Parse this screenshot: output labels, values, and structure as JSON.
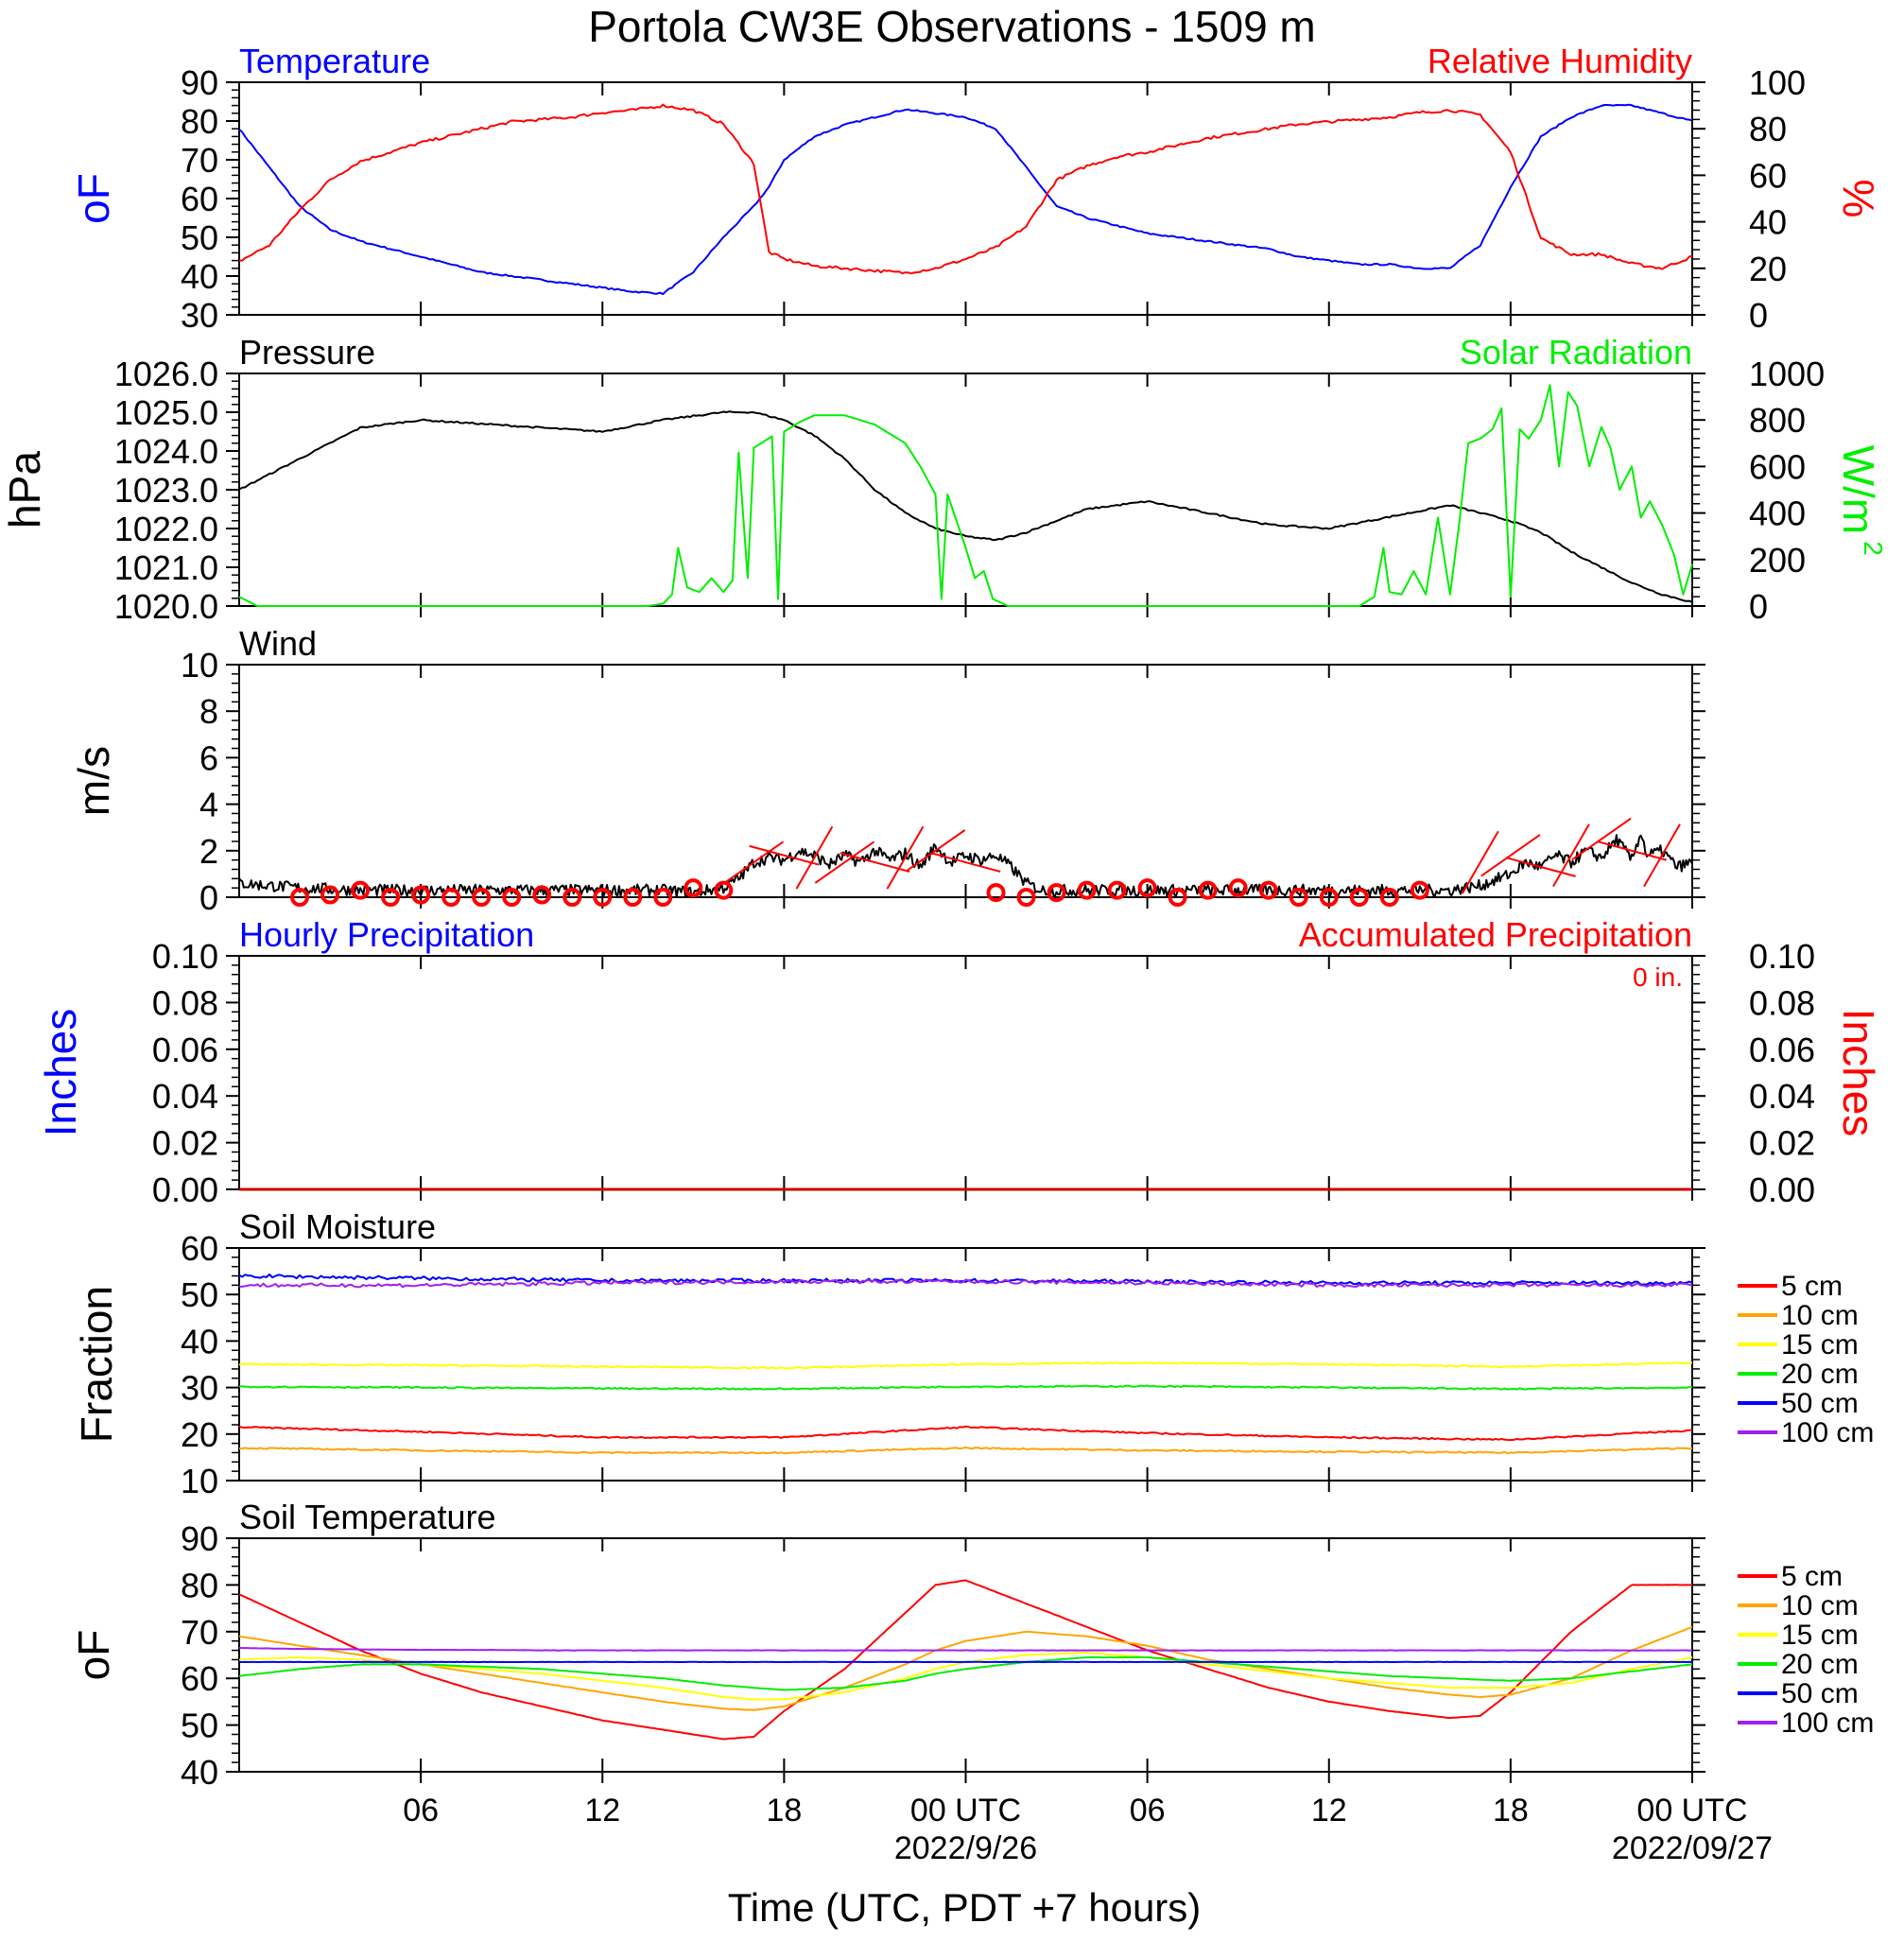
{
  "title": "Portola CW3E Observations - 1509 m",
  "x_axis": {
    "label": "Time (UTC, PDT +7 hours)",
    "tick_labels": [
      "06",
      "12",
      "18",
      "00 UTC",
      "06",
      "12",
      "18",
      "00 UTC"
    ],
    "date_labels": [
      "2022/9/26",
      "2022/09/27"
    ]
  },
  "chart_data": [
    {
      "id": "temp_rh",
      "type": "line",
      "title_left": "Temperature",
      "title_right": "Relative Humidity",
      "ylabel_left": "oF",
      "ylabel_right": "%",
      "ylim_left": [
        30,
        90
      ],
      "ylim_right": [
        0,
        100
      ],
      "left_ticks": [
        "30",
        "40",
        "50",
        "60",
        "70",
        "80",
        "90"
      ],
      "right_ticks": [
        "0",
        "20",
        "40",
        "60",
        "80",
        "100"
      ],
      "x_hours": [
        0,
        1,
        2,
        3,
        4,
        5,
        6,
        7,
        8,
        9,
        10,
        11,
        12,
        13,
        14,
        15,
        16,
        17,
        17.5,
        18,
        19,
        20,
        21,
        22,
        23,
        24,
        25,
        26,
        27,
        28,
        29,
        30,
        31,
        32,
        33,
        34,
        35,
        36,
        37,
        38,
        39,
        40,
        41,
        42,
        43,
        44,
        45,
        46,
        47,
        48
      ],
      "series": [
        {
          "name": "Temperature",
          "color": "#0000ff",
          "axis": "left",
          "values": [
            78,
            68,
            58,
            52,
            49,
            47,
            45,
            43,
            41,
            40,
            39,
            38,
            37,
            36,
            35.5,
            41,
            50,
            58,
            63,
            70,
            76,
            79,
            81,
            83,
            82,
            81,
            78,
            68,
            58,
            55,
            53,
            51,
            50,
            49,
            48,
            47,
            45,
            44,
            43,
            43,
            42,
            42,
            48,
            63,
            76,
            81,
            84,
            84,
            82,
            80
          ]
        },
        {
          "name": "Relative Humidity",
          "color": "#ff0000",
          "axis": "right",
          "values": [
            23,
            30,
            45,
            58,
            66,
            70,
            74,
            77,
            80,
            83,
            84,
            85,
            87,
            88,
            90,
            88,
            82,
            65,
            27,
            24,
            21,
            20,
            19,
            18,
            20,
            24,
            29,
            38,
            58,
            64,
            68,
            70,
            73,
            76,
            78,
            80,
            82,
            83,
            84,
            85,
            87,
            88,
            86,
            70,
            33,
            26,
            26,
            22,
            20,
            25
          ]
        }
      ]
    },
    {
      "id": "pressure_solar",
      "type": "line",
      "title_left": "Pressure",
      "title_right": "Solar Radiation",
      "ylabel_left": "hPa",
      "ylabel_right": "W/m",
      "ylabel_right_sup": "2",
      "ylim_left": [
        1020,
        1026
      ],
      "ylim_right": [
        0,
        1000
      ],
      "left_ticks": [
        "1020.0",
        "1021.0",
        "1022.0",
        "1023.0",
        "1024.0",
        "1025.0",
        "1026.0"
      ],
      "right_ticks": [
        "0",
        "200",
        "400",
        "600",
        "800",
        "1000"
      ],
      "series": [
        {
          "name": "Pressure",
          "color": "#000000",
          "axis": "left",
          "x_hours": [
            0,
            2,
            4,
            6,
            8,
            10,
            12,
            14,
            16,
            17,
            18,
            19,
            20,
            21,
            22,
            23,
            24,
            25,
            26,
            27,
            28,
            29,
            30,
            32,
            34,
            36,
            38,
            40,
            42,
            43,
            44,
            45,
            46,
            47,
            48
          ],
          "values": [
            1023.0,
            1023.8,
            1024.6,
            1024.8,
            1024.7,
            1024.6,
            1024.5,
            1024.8,
            1025.0,
            1025.0,
            1024.8,
            1024.4,
            1023.8,
            1023.0,
            1022.4,
            1022.0,
            1021.8,
            1021.7,
            1021.9,
            1022.2,
            1022.5,
            1022.6,
            1022.7,
            1022.4,
            1022.1,
            1022.0,
            1022.3,
            1022.6,
            1022.2,
            1021.9,
            1021.4,
            1021.0,
            1020.6,
            1020.3,
            1020.1
          ]
        },
        {
          "name": "Solar Radiation",
          "color": "#00ee00",
          "axis": "right",
          "x_hours": [
            0,
            0.6,
            1,
            13.5,
            14,
            14.3,
            14.5,
            14.8,
            15.2,
            15.6,
            16,
            16.3,
            16.5,
            16.8,
            17,
            17.6,
            17.8,
            18,
            18.5,
            19,
            20,
            21,
            22,
            22.5,
            23,
            23.2,
            23.4,
            24,
            24.3,
            24.6,
            24.9,
            25.4,
            26,
            28,
            37,
            37.5,
            37.8,
            38,
            38.4,
            38.8,
            39.2,
            39.6,
            40,
            40.3,
            40.6,
            41,
            41.4,
            41.7,
            42,
            42.3,
            42.6,
            43,
            43.3,
            43.6,
            43.9,
            44.2,
            44.6,
            45,
            45.3,
            45.6,
            46,
            46.3,
            46.6,
            47,
            47.4,
            47.7,
            48
          ],
          "values": [
            40,
            0,
            0,
            0,
            10,
            50,
            250,
            80,
            60,
            120,
            60,
            110,
            660,
            120,
            680,
            730,
            30,
            750,
            790,
            820,
            820,
            780,
            700,
            600,
            480,
            30,
            480,
            250,
            120,
            150,
            30,
            0,
            0,
            0,
            0,
            40,
            250,
            60,
            50,
            150,
            50,
            380,
            50,
            350,
            700,
            720,
            760,
            850,
            40,
            760,
            720,
            800,
            950,
            600,
            920,
            860,
            600,
            770,
            680,
            500,
            600,
            380,
            450,
            350,
            220,
            50,
            180
          ]
        }
      ]
    },
    {
      "id": "wind",
      "type": "line",
      "title_left": "Wind",
      "ylabel_left": "m/s",
      "ylim_left": [
        0,
        10
      ],
      "left_ticks": [
        "0",
        "2",
        "4",
        "6",
        "8",
        "10"
      ],
      "series": [
        {
          "name": "Wind",
          "color": "#000000",
          "axis": "left",
          "x_hours": [
            0,
            2,
            4,
            6,
            8,
            10,
            12,
            14,
            15,
            16,
            16.5,
            17,
            17.5,
            18,
            18.5,
            19,
            19.5,
            20,
            20.5,
            21,
            21.5,
            22,
            22.5,
            23,
            23.5,
            24,
            24.5,
            25,
            25.5,
            26,
            26.5,
            27,
            28,
            30,
            32,
            34,
            36,
            38,
            40,
            41,
            42,
            42.5,
            43,
            43.5,
            44,
            44.5,
            45,
            45.5,
            46,
            46.3,
            46.5,
            47,
            47.5,
            48
          ],
          "values": [
            0.6,
            0.4,
            0.3,
            0.3,
            0.3,
            0.3,
            0.3,
            0.3,
            0.2,
            0.4,
            0.8,
            1.5,
            1.7,
            1.6,
            2.0,
            1.8,
            1.4,
            1.8,
            1.5,
            2.0,
            1.6,
            1.9,
            1.3,
            2.2,
            1.5,
            1.8,
            1.6,
            1.8,
            1.3,
            0.6,
            0.3,
            0.3,
            0.3,
            0.3,
            0.3,
            0.3,
            0.3,
            0.3,
            0.3,
            0.5,
            1.0,
            1.5,
            1.3,
            1.8,
            1.5,
            2.0,
            1.7,
            2.5,
            1.6,
            2.8,
            1.8,
            2.0,
            1.3,
            1.5
          ]
        },
        {
          "name": "Wind circles",
          "type": "scatter",
          "color": "#ff0000",
          "x_hours": [
            2,
            3,
            4,
            5,
            6,
            7,
            8,
            9,
            10,
            11,
            12,
            13,
            14,
            15,
            16,
            25,
            26,
            27,
            28,
            29,
            30,
            31,
            32,
            33,
            34,
            35,
            36,
            37,
            38,
            39
          ],
          "values": [
            0,
            0.1,
            0.3,
            0,
            0.1,
            0,
            0,
            0,
            0.1,
            0,
            0,
            0,
            0,
            0.4,
            0.3,
            0.2,
            0,
            0.2,
            0.3,
            0.3,
            0.4,
            0,
            0.3,
            0.4,
            0.3,
            0,
            0,
            0,
            0,
            0.3
          ]
        },
        {
          "name": "Wind barbs",
          "type": "barb",
          "color": "#ff0000",
          "x_hours": [
            17,
            18,
            19,
            20,
            21,
            22,
            23,
            24,
            41,
            42,
            43,
            44,
            45,
            46,
            47
          ],
          "values": [
            1.5,
            1.8,
            1.7,
            1.5,
            1.5,
            1.7,
            2.0,
            1.5,
            1.5,
            1.8,
            1.3,
            1.8,
            2.5,
            2.0,
            1.8
          ]
        }
      ]
    },
    {
      "id": "precip",
      "type": "line",
      "title_left": "Hourly Precipitation",
      "title_right": "Accumulated Precipitation",
      "annotation": "0 in.",
      "ylabel_left": "Inches",
      "ylabel_right": "Inches",
      "ylim_left": [
        0,
        0.1
      ],
      "ylim_right": [
        0,
        0.1
      ],
      "left_ticks": [
        "0.00",
        "0.02",
        "0.04",
        "0.06",
        "0.08",
        "0.10"
      ],
      "right_ticks": [
        "0.00",
        "0.02",
        "0.04",
        "0.06",
        "0.08",
        "0.10"
      ],
      "x_hours": [
        0,
        48
      ],
      "series": [
        {
          "name": "Hourly Precipitation",
          "color": "#0000ff",
          "axis": "left",
          "values": [
            0,
            0
          ]
        },
        {
          "name": "Accumulated Precipitation",
          "color": "#cc0000",
          "axis": "right",
          "values": [
            0,
            0
          ]
        }
      ]
    },
    {
      "id": "soil_moisture",
      "type": "line",
      "title_left": "Soil Moisture",
      "ylabel_left": "Fraction",
      "ylim_left": [
        10,
        60
      ],
      "left_ticks": [
        "10",
        "20",
        "30",
        "40",
        "50",
        "60"
      ],
      "x_hours": [
        0,
        6,
        12,
        18,
        24,
        30,
        36,
        42,
        48
      ],
      "series": [
        {
          "name": "5 cm",
          "color": "#ff0000",
          "values": [
            21.5,
            20.5,
            19.3,
            19.3,
            21.5,
            20.2,
            19.3,
            18.8,
            20.8
          ]
        },
        {
          "name": "10 cm",
          "color": "#ffa500",
          "values": [
            17.0,
            16.5,
            16.0,
            16.0,
            17.0,
            16.5,
            16.2,
            16.0,
            17.0
          ]
        },
        {
          "name": "15 cm",
          "color": "#ffff00",
          "values": [
            35.0,
            34.8,
            34.5,
            34.2,
            35.0,
            35.3,
            35.0,
            34.5,
            35.3
          ]
        },
        {
          "name": "20 cm",
          "color": "#00ee00",
          "values": [
            30.2,
            30.0,
            29.8,
            29.7,
            30.2,
            30.3,
            30.0,
            29.7,
            30.0
          ]
        },
        {
          "name": "50 cm",
          "color": "#0000ff",
          "values": [
            54.0,
            53.5,
            53.0,
            53.0,
            53.0,
            52.8,
            52.5,
            52.5,
            52.5
          ]
        },
        {
          "name": "100 cm",
          "color": "#a020f0",
          "values": [
            52.0,
            52.0,
            52.5,
            52.8,
            52.8,
            52.5,
            52.0,
            52.0,
            52.0
          ]
        }
      ]
    },
    {
      "id": "soil_temp",
      "type": "line",
      "title_left": "Soil Temperature",
      "ylabel_left": "oF",
      "ylim_left": [
        40,
        90
      ],
      "left_ticks": [
        "40",
        "50",
        "60",
        "70",
        "80",
        "90"
      ],
      "x_hours": [
        0,
        2,
        4,
        6,
        8,
        10,
        12,
        14,
        16,
        17,
        18,
        20,
        22,
        23,
        24,
        26,
        28,
        30,
        32,
        34,
        36,
        38,
        40,
        41,
        42,
        44,
        46,
        48
      ],
      "series": [
        {
          "name": "5 cm",
          "color": "#ff0000",
          "values": [
            78,
            72,
            66,
            61,
            57,
            54,
            51,
            49,
            47,
            47.5,
            53,
            62,
            74,
            80,
            81,
            76,
            71,
            66,
            62,
            58,
            55,
            53,
            51.5,
            52,
            57,
            70,
            80,
            80
          ]
        },
        {
          "name": "10 cm",
          "color": "#ffa500",
          "values": [
            69,
            67,
            65,
            63,
            61,
            59,
            57,
            55,
            53.5,
            53.2,
            54,
            58,
            63,
            66,
            68,
            70,
            69,
            67,
            64,
            62,
            60,
            58,
            56.5,
            56,
            56.5,
            60,
            66,
            71
          ]
        },
        {
          "name": "15 cm",
          "color": "#ffff00",
          "values": [
            64,
            64.5,
            64,
            63,
            62,
            61,
            59.5,
            58,
            56,
            55.5,
            55.5,
            57,
            60,
            62,
            63.5,
            65,
            65.5,
            64.5,
            63,
            61.5,
            60,
            59,
            58,
            58,
            58,
            59,
            62,
            64.5
          ]
        },
        {
          "name": "20 cm",
          "color": "#00ee00",
          "values": [
            60.5,
            62,
            63,
            63,
            62.5,
            62,
            61,
            60,
            58.5,
            58,
            57.5,
            58,
            59.5,
            61,
            62,
            63.5,
            64.5,
            64.5,
            63.5,
            62.5,
            61.5,
            60.5,
            60,
            59.7,
            59.5,
            60,
            61.5,
            63
          ]
        },
        {
          "name": "50 cm",
          "color": "#0000ff",
          "values": [
            63.5,
            63.5,
            63.5,
            63.5,
            63.5,
            63.5,
            63.5,
            63.5,
            63.5,
            63.5,
            63.5,
            63.5,
            63.5,
            63.5,
            63.5,
            63.5,
            63.5,
            63.5,
            63.5,
            63.5,
            63.5,
            63.5,
            63.5,
            63.5,
            63.5,
            63.5,
            63.5,
            63.5
          ]
        },
        {
          "name": "100 cm",
          "color": "#a020f0",
          "values": [
            66.5,
            66.3,
            66.2,
            66.1,
            66.1,
            66,
            66,
            66,
            66,
            66,
            66,
            66,
            66,
            66,
            66,
            66,
            66,
            66,
            66,
            66,
            66,
            66,
            66,
            66,
            66,
            66,
            66,
            66
          ]
        }
      ]
    }
  ]
}
